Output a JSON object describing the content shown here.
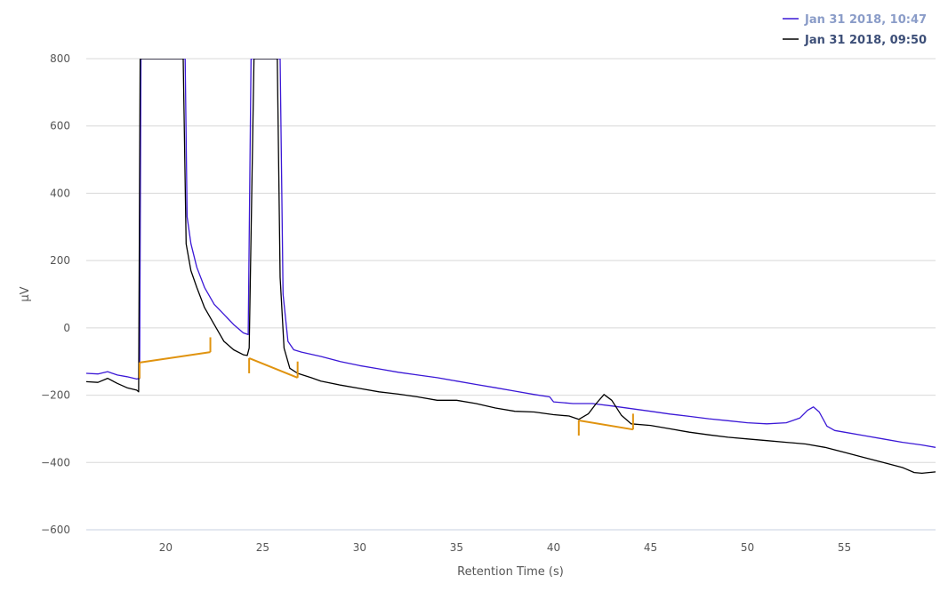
{
  "chart_data": {
    "type": "line",
    "xlabel": "Retention Time (s)",
    "ylabel": "µV",
    "xlim": [
      15.9,
      59.7
    ],
    "ylim": [
      -600,
      800
    ],
    "x_ticks": [
      20,
      25,
      30,
      35,
      40,
      45,
      50,
      55
    ],
    "y_ticks": [
      800,
      600,
      400,
      200,
      0,
      -200,
      -400,
      -600
    ],
    "grid": "horizontal",
    "legend_position": "top-right",
    "series": [
      {
        "name": "Jan 31 2018, 10:47",
        "color": "#3b18d6",
        "points": [
          [
            15.9,
            -135
          ],
          [
            16.5,
            -137
          ],
          [
            17.0,
            -130
          ],
          [
            17.5,
            -140
          ],
          [
            18.0,
            -145
          ],
          [
            18.5,
            -152
          ],
          [
            18.65,
            -150
          ],
          [
            18.72,
            800
          ],
          [
            21.0,
            800
          ],
          [
            21.1,
            330
          ],
          [
            21.3,
            250
          ],
          [
            21.6,
            180
          ],
          [
            22.0,
            120
          ],
          [
            22.5,
            70
          ],
          [
            23.0,
            40
          ],
          [
            23.5,
            10
          ],
          [
            24.0,
            -15
          ],
          [
            24.25,
            -20
          ],
          [
            24.4,
            800
          ],
          [
            25.9,
            800
          ],
          [
            26.05,
            100
          ],
          [
            26.3,
            -40
          ],
          [
            26.6,
            -65
          ],
          [
            27.0,
            -72
          ],
          [
            28.0,
            -85
          ],
          [
            29.0,
            -100
          ],
          [
            30.0,
            -112
          ],
          [
            31.0,
            -122
          ],
          [
            32.0,
            -132
          ],
          [
            33.0,
            -140
          ],
          [
            34.0,
            -148
          ],
          [
            35.0,
            -158
          ],
          [
            36.0,
            -168
          ],
          [
            37.0,
            -178
          ],
          [
            38.0,
            -188
          ],
          [
            39.0,
            -198
          ],
          [
            39.8,
            -205
          ],
          [
            40.0,
            -220
          ],
          [
            41.0,
            -225
          ],
          [
            42.0,
            -225
          ],
          [
            43.0,
            -232
          ],
          [
            44.0,
            -240
          ],
          [
            45.0,
            -248
          ],
          [
            46.0,
            -256
          ],
          [
            47.0,
            -263
          ],
          [
            48.0,
            -270
          ],
          [
            49.0,
            -276
          ],
          [
            50.0,
            -282
          ],
          [
            51.0,
            -285
          ],
          [
            52.0,
            -282
          ],
          [
            52.7,
            -268
          ],
          [
            53.1,
            -245
          ],
          [
            53.4,
            -235
          ],
          [
            53.7,
            -250
          ],
          [
            54.1,
            -292
          ],
          [
            54.5,
            -305
          ],
          [
            55.0,
            -310
          ],
          [
            56.0,
            -320
          ],
          [
            57.0,
            -330
          ],
          [
            58.0,
            -340
          ],
          [
            59.0,
            -348
          ],
          [
            59.7,
            -355
          ]
        ]
      },
      {
        "name": "Jan 31 2018, 09:50",
        "color": "#000000",
        "points": [
          [
            15.9,
            -160
          ],
          [
            16.5,
            -162
          ],
          [
            17.0,
            -150
          ],
          [
            17.5,
            -165
          ],
          [
            18.0,
            -178
          ],
          [
            18.5,
            -185
          ],
          [
            18.6,
            -190
          ],
          [
            18.68,
            800
          ],
          [
            20.9,
            800
          ],
          [
            21.05,
            250
          ],
          [
            21.3,
            170
          ],
          [
            21.6,
            120
          ],
          [
            22.0,
            60
          ],
          [
            22.5,
            10
          ],
          [
            23.0,
            -40
          ],
          [
            23.5,
            -65
          ],
          [
            24.0,
            -80
          ],
          [
            24.2,
            -82
          ],
          [
            24.3,
            -60
          ],
          [
            24.55,
            800
          ],
          [
            25.75,
            800
          ],
          [
            25.9,
            150
          ],
          [
            26.1,
            -60
          ],
          [
            26.4,
            -120
          ],
          [
            26.8,
            -135
          ],
          [
            27.5,
            -148
          ],
          [
            28.0,
            -158
          ],
          [
            29.0,
            -170
          ],
          [
            30.0,
            -180
          ],
          [
            31.0,
            -190
          ],
          [
            32.0,
            -197
          ],
          [
            33.0,
            -205
          ],
          [
            34.0,
            -215
          ],
          [
            35.0,
            -215
          ],
          [
            36.0,
            -225
          ],
          [
            37.0,
            -238
          ],
          [
            38.0,
            -248
          ],
          [
            39.0,
            -250
          ],
          [
            40.0,
            -258
          ],
          [
            40.8,
            -262
          ],
          [
            41.3,
            -272
          ],
          [
            41.8,
            -255
          ],
          [
            42.2,
            -225
          ],
          [
            42.6,
            -198
          ],
          [
            43.0,
            -215
          ],
          [
            43.5,
            -260
          ],
          [
            44.0,
            -285
          ],
          [
            45.0,
            -290
          ],
          [
            46.0,
            -300
          ],
          [
            47.0,
            -310
          ],
          [
            48.0,
            -318
          ],
          [
            49.0,
            -325
          ],
          [
            50.0,
            -330
          ],
          [
            51.0,
            -335
          ],
          [
            52.0,
            -340
          ],
          [
            53.0,
            -345
          ],
          [
            54.0,
            -355
          ],
          [
            55.0,
            -370
          ],
          [
            56.0,
            -385
          ],
          [
            57.0,
            -400
          ],
          [
            58.0,
            -415
          ],
          [
            58.6,
            -430
          ],
          [
            59.0,
            -432
          ],
          [
            59.7,
            -428
          ]
        ]
      }
    ],
    "integration_markers": {
      "color": "#e0930f",
      "baselines": [
        {
          "start": [
            18.65,
            -103
          ],
          "end": [
            22.3,
            -72
          ]
        },
        {
          "start": [
            24.3,
            -90
          ],
          "end": [
            26.8,
            -148
          ]
        },
        {
          "start": [
            41.3,
            -275
          ],
          "end": [
            44.1,
            -302
          ]
        }
      ],
      "ticks": [
        {
          "x": 18.65,
          "y1": -150,
          "y2": -103
        },
        {
          "x": 22.3,
          "y1": -72,
          "y2": -28
        },
        {
          "x": 24.3,
          "y1": -135,
          "y2": -90
        },
        {
          "x": 26.8,
          "y1": -148,
          "y2": -100
        },
        {
          "x": 41.3,
          "y1": -320,
          "y2": -275
        },
        {
          "x": 44.1,
          "y1": -302,
          "y2": -255
        }
      ]
    }
  }
}
